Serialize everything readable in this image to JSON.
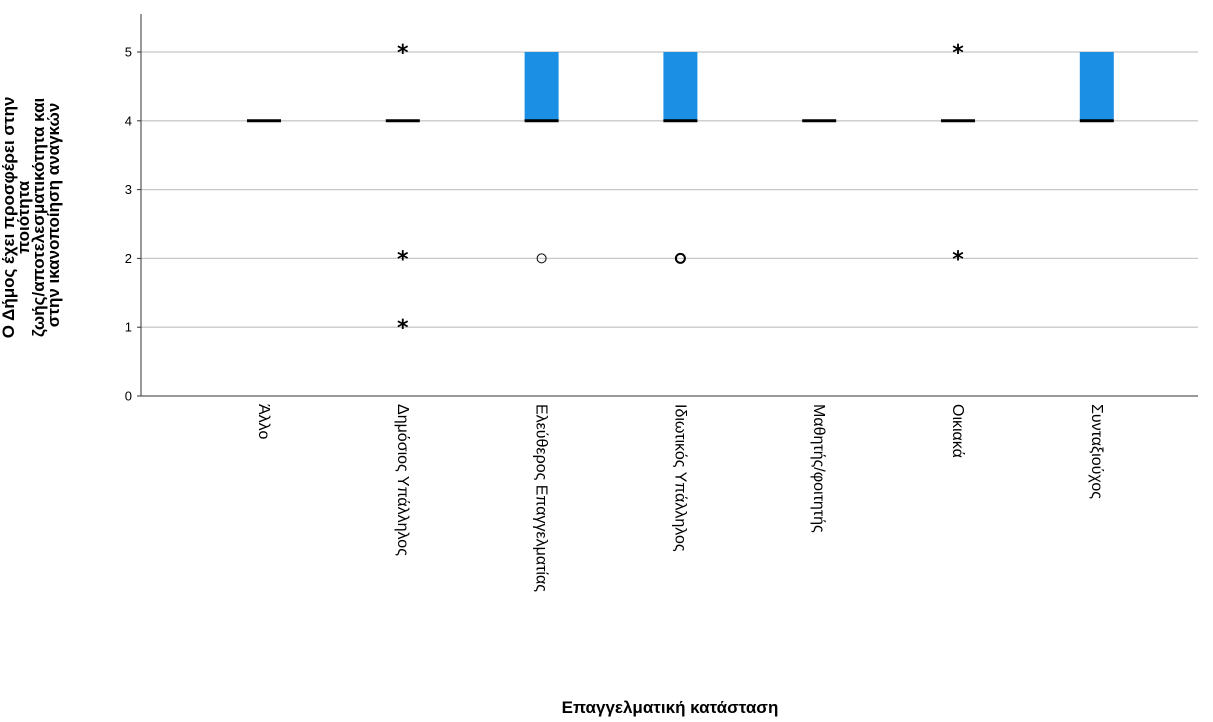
{
  "chart_data": {
    "type": "boxplot",
    "xlabel": "Επαγγελματική κατάσταση",
    "ylabel_lines": [
      "Ο Δήμος έχει προσφέρει στην",
      "ποιότητα",
      "ζωής/αποτελεσματικότητα και",
      "στην ικανοποίηση αναγκών"
    ],
    "y_ticks": [
      0,
      1,
      2,
      3,
      4,
      5
    ],
    "ylim": [
      0,
      5.55
    ],
    "grid": "horizontal",
    "box_color": "#1a8fe3",
    "categories": [
      "Άλλο",
      "Δημόσιος Υπάλληλος",
      "Ελεύθερος Επαγγελματίας",
      "Ιδιωτικός Υπάλληλος",
      "Μαθητής/φοιτητής",
      "Οικιακά",
      "Συνταξιούχος"
    ],
    "boxes": [
      {
        "category": "Άλλο",
        "q1": 4,
        "median": 4,
        "q3": 4,
        "outliers": [],
        "extremes": []
      },
      {
        "category": "Δημόσιος Υπάλληλος",
        "q1": 4,
        "median": 4,
        "q3": 4,
        "outliers": [],
        "extremes": [
          5,
          2,
          1
        ]
      },
      {
        "category": "Ελεύθερος Επαγγελματίας",
        "q1": 4,
        "median": 4,
        "q3": 5,
        "outliers": [
          2
        ],
        "extremes": []
      },
      {
        "category": "Ιδιωτικός Υπάλληλος",
        "q1": 4,
        "median": 4,
        "q3": 5,
        "outliers": [
          2
        ],
        "extremes": []
      },
      {
        "category": "Μαθητής/φοιτητής",
        "q1": 4,
        "median": 4,
        "q3": 4,
        "outliers": [],
        "extremes": []
      },
      {
        "category": "Οικιακά",
        "q1": 4,
        "median": 4,
        "q3": 4,
        "outliers": [],
        "extremes": [
          5,
          2
        ]
      },
      {
        "category": "Συνταξιούχος",
        "q1": 4,
        "median": 4,
        "q3": 5,
        "outliers": [],
        "extremes": []
      }
    ]
  }
}
